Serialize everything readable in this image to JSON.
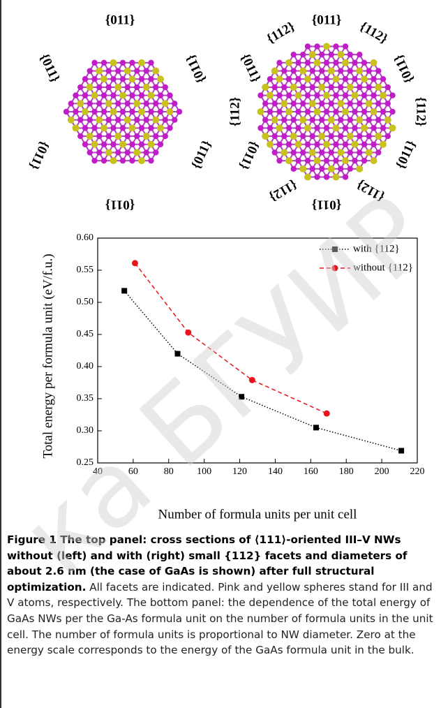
{
  "structures": {
    "left_labels": [
      "{011}",
      "{011}",
      "{011}",
      "{011}",
      "{011}",
      "{011}"
    ],
    "right_labels": [
      "{112}",
      "{011}",
      "{112}",
      "{011}",
      "{011}",
      "{112}",
      "{112}",
      "{011}",
      "{011}",
      "{112}",
      "{011}",
      "{112}"
    ]
  },
  "chart_data": {
    "type": "line",
    "x_label": "Number of formula units per unit cell",
    "y_label": "Total energy per formula unit (eV/f.u.)",
    "xlim": [
      40,
      220
    ],
    "xticks": [
      40,
      60,
      80,
      100,
      120,
      140,
      160,
      180,
      200,
      220
    ],
    "ylim": [
      0.25,
      0.6
    ],
    "yticks": [
      0.25,
      {
        "value": 0.3,
        "label": "0.30"
      },
      0.35,
      {
        "value": 0.4,
        "label": "0.40"
      },
      0.45,
      {
        "value": 0.5,
        "label": "0.50"
      },
      0.55,
      {
        "value": 0.6,
        "label": "0.60"
      }
    ],
    "legend": "upper right",
    "series": [
      {
        "name": "with {112}",
        "color": "#000000",
        "marker": "square",
        "line_style": "dotted",
        "x": [
          55,
          85,
          121,
          163,
          211
        ],
        "values": [
          0.518,
          0.42,
          0.353,
          0.305,
          0.269
        ]
      },
      {
        "name": "without {112}",
        "color": "#e8141c",
        "marker": "circle",
        "line_style": "dashed",
        "x": [
          61,
          91,
          127,
          169
        ],
        "values": [
          0.561,
          0.453,
          0.379,
          0.327
        ]
      }
    ]
  },
  "caption": {
    "title": "Figure 1 The top panel: cross sections of ⟨111⟩-oriented III–V NWs without (left) and with (right) small {112} facets and diameters of about 2.6 nm (the case of GaAs is shown) after full structural optimization.",
    "text": "All facets are indicated. Pink and yellow spheres stand for III and V atoms, respectively. The bottom panel: the dependence of the total energy of GaAs NWs per the Ga-As formula unit on the number of formula units in the unit cell. The number of formula units is proportional to NW diameter. Zero at the energy scale corresponds to the energy of the GaAs formula unit in the bulk."
  },
  "watermark": "ка БГУИР"
}
